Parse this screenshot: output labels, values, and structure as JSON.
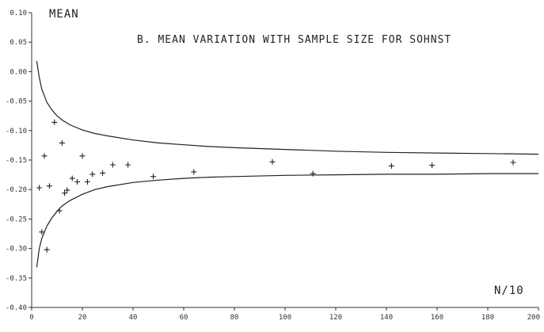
{
  "chart_data": {
    "type": "scatter",
    "title": "B. MEAN VARIATION WITH SAMPLE SIZE FOR SOHNST",
    "ylabel": "MEAN",
    "xlabel": "N/10",
    "xlim": [
      0,
      200
    ],
    "ylim": [
      -0.4,
      0.1
    ],
    "grid": false,
    "x_ticks": [
      0,
      20,
      40,
      60,
      80,
      100,
      120,
      140,
      160,
      180,
      200
    ],
    "y_ticks": [
      0.1,
      0.05,
      0.0,
      -0.05,
      -0.1,
      -0.15,
      -0.2,
      -0.25,
      -0.3,
      -0.35,
      -0.4
    ],
    "y_tick_labels": [
      "0.10",
      "0.05",
      "0.00",
      "-0.05",
      "-0.10",
      "-0.15",
      "-0.20",
      "-0.25",
      "-0.30",
      "-0.35",
      "-0.40"
    ],
    "points": {
      "x": [
        3,
        4,
        5,
        6,
        7,
        9,
        11,
        12,
        13,
        14,
        16,
        18,
        20,
        22,
        24,
        28,
        32,
        38,
        48,
        64,
        95,
        111,
        142,
        158,
        190
      ],
      "y": [
        -0.197,
        -0.272,
        -0.143,
        -0.302,
        -0.194,
        -0.086,
        -0.236,
        -0.121,
        -0.206,
        -0.201,
        -0.181,
        -0.187,
        -0.143,
        -0.187,
        -0.174,
        -0.172,
        -0.158,
        -0.158,
        -0.178,
        -0.17,
        -0.153,
        -0.173,
        -0.16,
        -0.159,
        -0.154
      ]
    },
    "upper_bound": {
      "x": [
        2,
        3,
        4,
        6,
        8,
        10,
        12,
        15,
        20,
        25,
        30,
        40,
        50,
        60,
        70,
        80,
        100,
        120,
        140,
        160,
        180,
        200
      ],
      "y": [
        0.018,
        -0.01,
        -0.03,
        -0.052,
        -0.065,
        -0.075,
        -0.082,
        -0.09,
        -0.099,
        -0.105,
        -0.109,
        -0.116,
        -0.121,
        -0.124,
        -0.127,
        -0.129,
        -0.132,
        -0.135,
        -0.137,
        -0.138,
        -0.139,
        -0.14
      ]
    },
    "lower_bound": {
      "x": [
        2,
        3,
        4,
        6,
        8,
        10,
        12,
        15,
        20,
        25,
        30,
        40,
        50,
        60,
        70,
        80,
        100,
        120,
        140,
        160,
        180,
        200
      ],
      "y": [
        -0.332,
        -0.3,
        -0.283,
        -0.262,
        -0.248,
        -0.237,
        -0.228,
        -0.219,
        -0.208,
        -0.2,
        -0.195,
        -0.188,
        -0.184,
        -0.181,
        -0.179,
        -0.178,
        -0.176,
        -0.175,
        -0.174,
        -0.174,
        -0.173,
        -0.173
      ]
    }
  }
}
